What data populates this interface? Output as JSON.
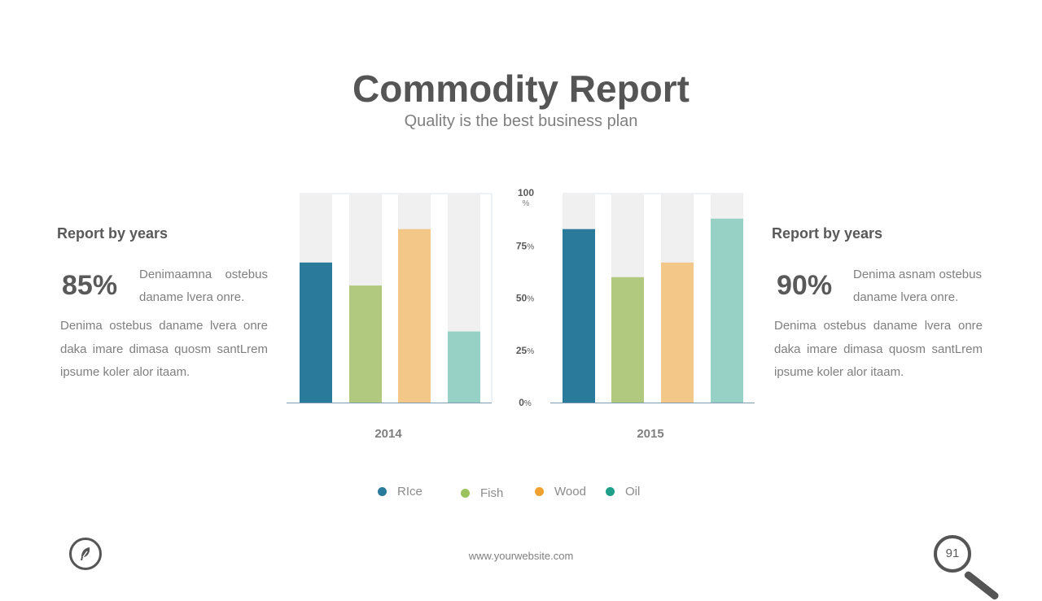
{
  "header": {
    "title": "Commodity Report",
    "subtitle": "Quality is the best business plan"
  },
  "left_panel": {
    "heading": "Report by years",
    "percent": "85%",
    "short_text": "Denimaamna ostebus daname lvera onre.",
    "long_text": "Denima ostebus daname lvera onre daka imare dimasa quosm santLrem ipsume koler alor itaam."
  },
  "right_panel": {
    "heading": "Report by years",
    "percent": "90%",
    "short_text": "Denima asnam ostebus daname lvera onre.",
    "long_text": "Denima ostebus daname lvera onre daka imare dimasa quosm santLrem ipsume koler alor itaam."
  },
  "chart_data": {
    "type": "bar",
    "categories": [
      "RIce",
      "Fish",
      "Wood",
      "Oil"
    ],
    "groups": [
      {
        "label": "2014",
        "values": [
          67,
          56,
          83,
          34
        ]
      },
      {
        "label": "2015",
        "values": [
          83,
          60,
          67,
          88
        ]
      }
    ],
    "ylim": [
      0,
      100
    ],
    "y_ticks": [
      {
        "value": 100,
        "label": "100",
        "unit": "%"
      },
      {
        "value": 75,
        "label": "75",
        "unit": "%"
      },
      {
        "value": 50,
        "label": "50",
        "unit": "%"
      },
      {
        "value": 25,
        "label": "25",
        "unit": "%"
      },
      {
        "value": 0,
        "label": "0",
        "unit": "%"
      }
    ],
    "colors": [
      "#2a7b9b",
      "#b1c97f",
      "#f2c787",
      "#97d1c6"
    ],
    "legend_colors": [
      "#2a7b9b",
      "#9cc25e",
      "#f0a12f",
      "#1f9e8a"
    ],
    "background_bar_color": "#f0f0f0",
    "legend_position": "bottom"
  },
  "footer": {
    "url": "www.yourwebsite.com",
    "page_number": "91"
  }
}
